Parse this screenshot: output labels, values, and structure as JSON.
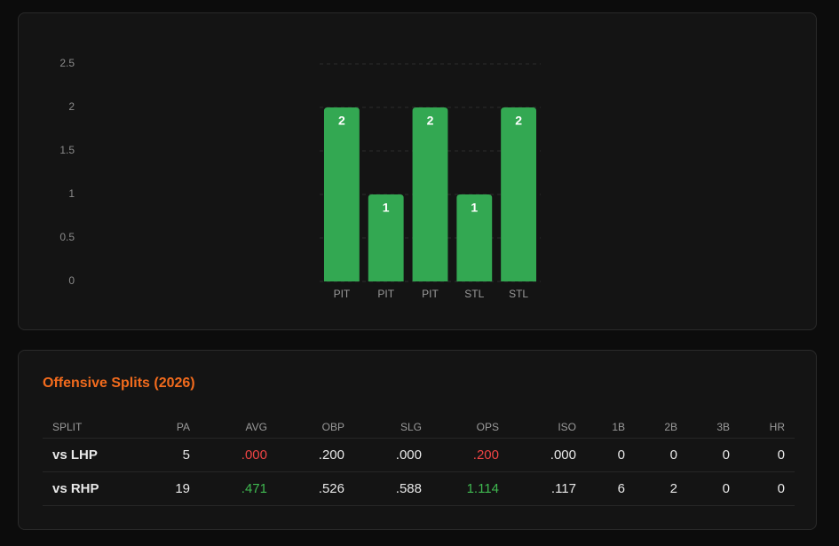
{
  "chart_data": {
    "type": "bar",
    "categories": [
      "PIT",
      "PIT",
      "PIT",
      "STL",
      "STL"
    ],
    "values": [
      2,
      1,
      2,
      1,
      2
    ],
    "color": "#33a852",
    "ylim": [
      0,
      2.5
    ],
    "yticks": [
      0,
      0.5,
      1,
      1.5,
      2,
      2.5
    ],
    "grid": true
  },
  "table": {
    "title": "Offensive Splits (2026)",
    "header": [
      "SPLIT",
      "PA",
      "AVG",
      "OBP",
      "SLG",
      "OPS",
      "ISO",
      "1B",
      "2B",
      "3B",
      "HR"
    ],
    "rows": [
      [
        "vs LHP",
        "5",
        ".000",
        ".200",
        ".000",
        ".200",
        ".000",
        "0",
        "0",
        "0",
        "0"
      ],
      [
        "vs RHP",
        "19",
        ".471",
        ".526",
        ".588",
        "1.114",
        ".117",
        "6",
        "2",
        "0",
        "0"
      ]
    ]
  }
}
